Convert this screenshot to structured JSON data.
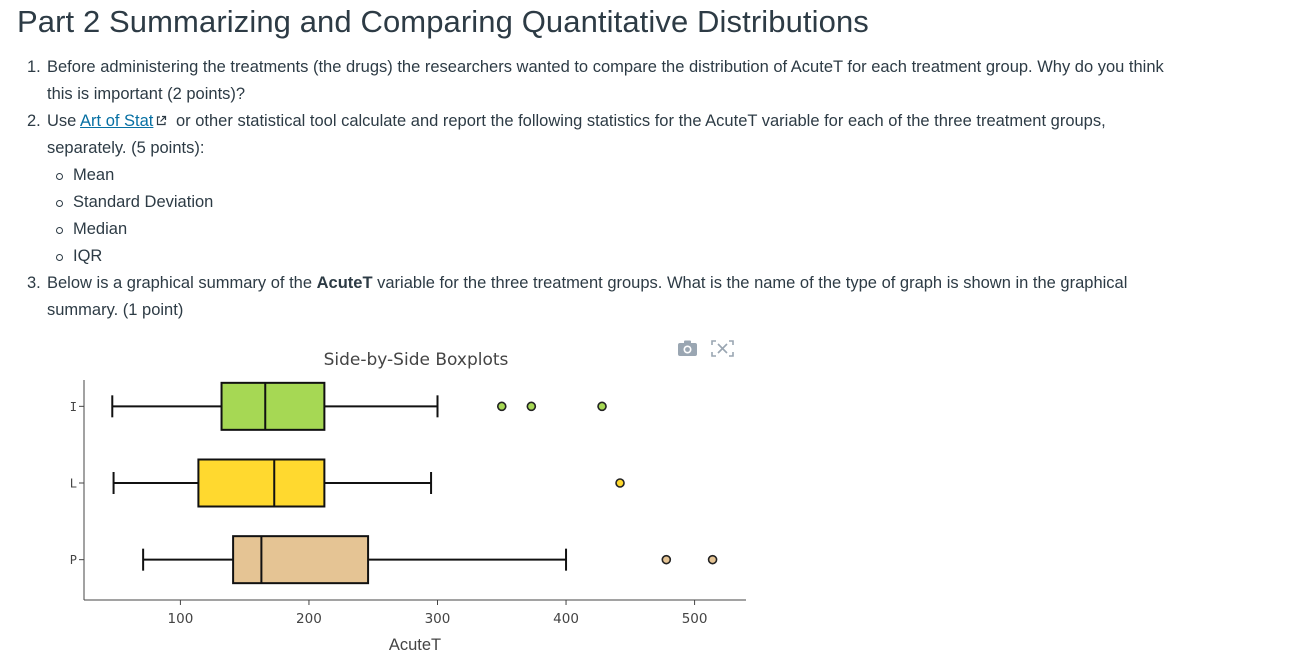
{
  "page": {
    "title": "Part 2 Summarizing and Comparing Quantitative Distributions"
  },
  "questions": [
    {
      "number": "1.",
      "line1": "Before administering the treatments (the drugs) the researchers wanted to compare the distribution of AcuteT for each treatment group. Why do you think",
      "line2": "this is important (2 points)?"
    },
    {
      "number": "2.",
      "pre_link": "Use ",
      "link_text": "Art of Stat",
      "post_link": " or other statistical tool calculate and report the following statistics for the AcuteT variable for each of the three treatment groups,",
      "line2": "separately. (5 points):",
      "items": [
        "Mean",
        "Standard Deviation",
        "Median",
        "IQR"
      ]
    },
    {
      "number": "3.",
      "pre_bold": "Below is a graphical summary of the ",
      "bold": "AcuteT",
      "post_bold": " variable for the three treatment groups. What is the name of the type of graph is shown in the graphical",
      "line2": "summary. (1 point)"
    }
  ],
  "modebar": {
    "icons": [
      "camera-icon",
      "autoscale-icon"
    ],
    "color": "#9aa6b2"
  },
  "chart_data": {
    "type": "box",
    "orientation": "horizontal",
    "title": "Side-by-Side Boxplots",
    "xlabel": "AcuteT",
    "ylabel": "",
    "xlim": [
      25,
      540
    ],
    "xticks": [
      100,
      200,
      300,
      400,
      500
    ],
    "categories": [
      "I",
      "L",
      "P"
    ],
    "grid": false,
    "series": [
      {
        "name": "I",
        "color": "#a6d854",
        "whisker_low": 47,
        "q1": 132,
        "median": 166,
        "q3": 212,
        "whisker_high": 300,
        "outliers": [
          350,
          373,
          428
        ]
      },
      {
        "name": "L",
        "color": "#ffd92f",
        "whisker_low": 48,
        "q1": 114,
        "median": 173,
        "q3": 212,
        "whisker_high": 295,
        "outliers": [
          442
        ]
      },
      {
        "name": "P",
        "color": "#e5c494",
        "whisker_low": 71,
        "q1": 141,
        "median": 163,
        "q3": 246,
        "whisker_high": 400,
        "outliers": [
          478,
          514
        ]
      }
    ]
  }
}
